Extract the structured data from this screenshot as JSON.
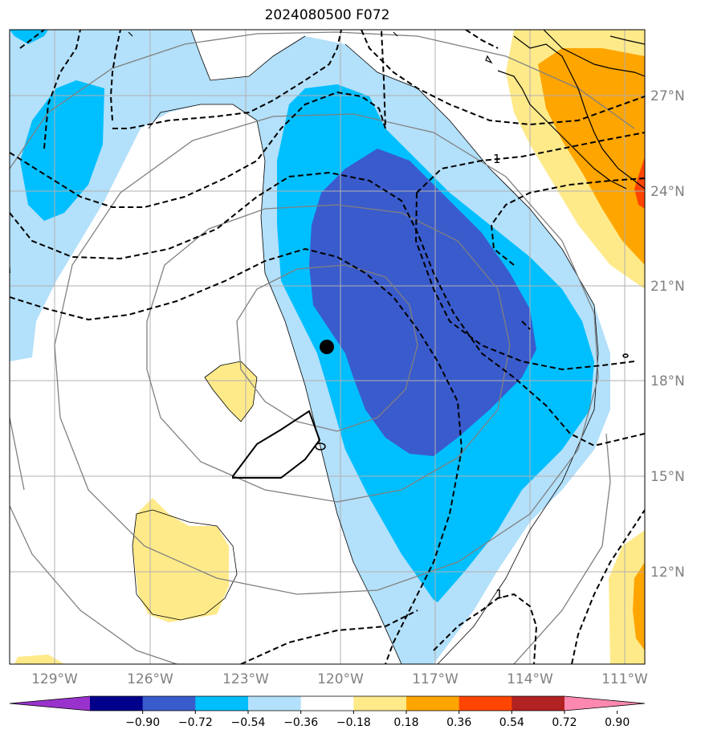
{
  "title": "2024080500 F072",
  "map": {
    "longitude_labels": [
      "129°W",
      "126°W",
      "123°W",
      "120°W",
      "117°W",
      "114°W",
      "111°W"
    ],
    "latitude_labels": [
      "27°N",
      "24°N",
      "21°N",
      "18°N",
      "15°N",
      "12°N"
    ],
    "contour_labels": [
      "1",
      "1"
    ],
    "storm_center_marker": "filled-circle"
  },
  "colorbar": {
    "tick_labels": [
      "−0.90",
      "−0.72",
      "−0.54",
      "−0.36",
      "−0.18",
      "0.18",
      "0.36",
      "0.54",
      "0.72",
      "0.90"
    ],
    "colors": [
      "#9932cc",
      "#00008b",
      "#3a5bcc",
      "#00bfff",
      "#b3e0fa",
      "#ffffff",
      "#ffea8a",
      "#ffa500",
      "#ff4500",
      "#b22222",
      "#ff88b0"
    ]
  },
  "colors": {
    "grid": "#b0b0b0",
    "axis_label": "#808080",
    "contour_dashed": "#000000",
    "contour_gray": "#808080"
  }
}
